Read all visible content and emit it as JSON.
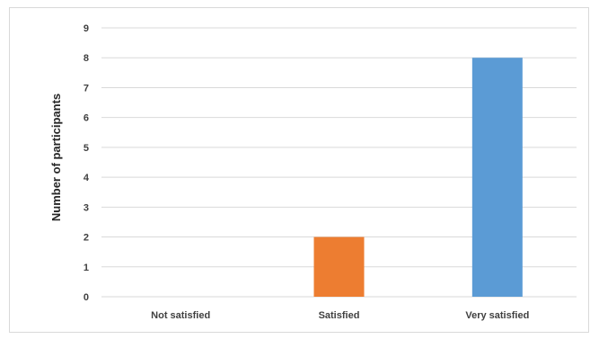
{
  "chart_data": {
    "type": "bar",
    "title": "",
    "xlabel": "",
    "ylabel": "Number of participants",
    "categories": [
      "Not satisfied",
      "Satisfied",
      "Very satisfied"
    ],
    "values": [
      0,
      2,
      8
    ],
    "colors": [
      "#4472c4",
      "#ed7d31",
      "#5b9bd5"
    ],
    "ylim": [
      0,
      9
    ],
    "yticks": [
      "0",
      "1",
      "2",
      "3",
      "4",
      "5",
      "6",
      "7",
      "8",
      "9"
    ],
    "grid": true,
    "gridline_color": "#d9d9d9",
    "legend": "none"
  }
}
